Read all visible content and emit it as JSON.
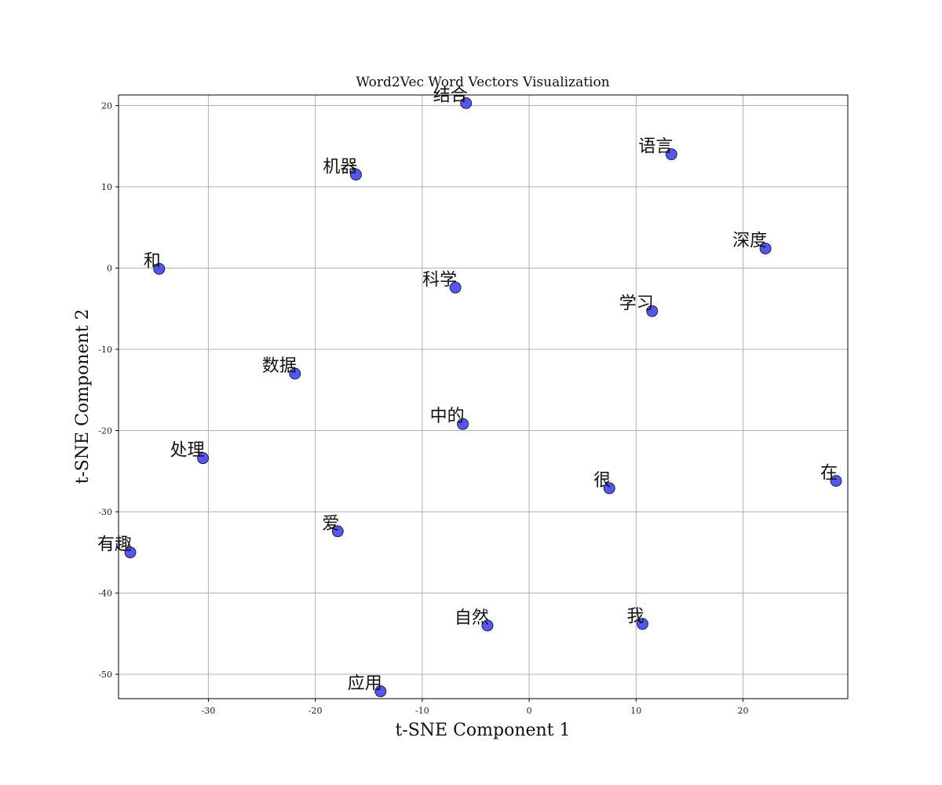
{
  "chart_data": {
    "type": "scatter",
    "title": "Word2Vec Word Vectors Visualization",
    "xlabel": "t-SNE Component 1",
    "ylabel": "t-SNE Component 2",
    "xlim": [
      -38.4,
      29.8
    ],
    "ylim": [
      -53.0,
      21.3
    ],
    "xticks": [
      -30,
      -20,
      -10,
      0,
      10,
      20
    ],
    "yticks": [
      -50,
      -40,
      -30,
      -20,
      -10,
      0,
      10,
      20
    ],
    "grid": true,
    "marker_color": "#4444ee",
    "marker_edge": "#222244",
    "points": [
      {
        "label": "结合",
        "x": -5.9,
        "y": 20.3
      },
      {
        "label": "语言",
        "x": 13.3,
        "y": 14.0
      },
      {
        "label": "机器",
        "x": -16.2,
        "y": 11.5
      },
      {
        "label": "深度",
        "x": 22.1,
        "y": 2.4
      },
      {
        "label": "和",
        "x": -34.6,
        "y": -0.1
      },
      {
        "label": "科学",
        "x": -6.9,
        "y": -2.4
      },
      {
        "label": "学习",
        "x": 11.5,
        "y": -5.3
      },
      {
        "label": "数据",
        "x": -21.9,
        "y": -13.0
      },
      {
        "label": "中的",
        "x": -6.2,
        "y": -19.2
      },
      {
        "label": "处理",
        "x": -30.5,
        "y": -23.4
      },
      {
        "label": "很",
        "x": 7.5,
        "y": -27.1
      },
      {
        "label": "在",
        "x": 28.7,
        "y": -26.2
      },
      {
        "label": "爱",
        "x": -17.9,
        "y": -32.4
      },
      {
        "label": "有趣",
        "x": -37.3,
        "y": -35.0
      },
      {
        "label": "自然",
        "x": -3.9,
        "y": -44.0
      },
      {
        "label": "我",
        "x": 10.6,
        "y": -43.8
      },
      {
        "label": "应用",
        "x": -13.9,
        "y": -52.1
      }
    ]
  }
}
